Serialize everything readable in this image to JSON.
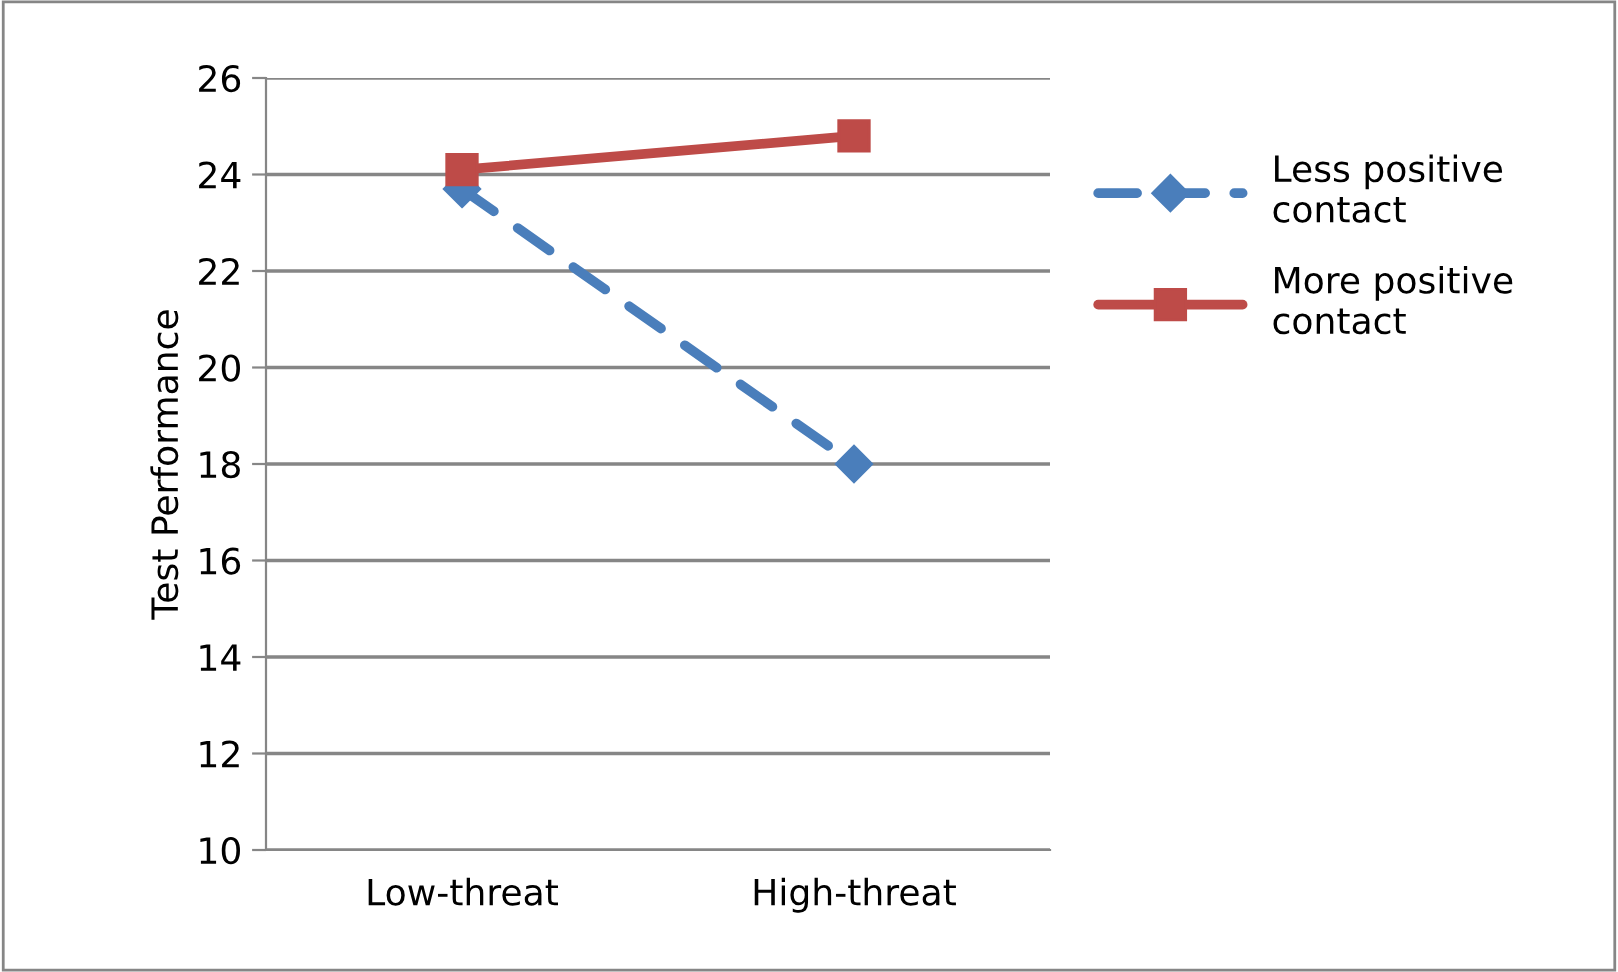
{
  "chart_data": {
    "type": "line",
    "ylabel": "Test Performance",
    "categories": [
      "Low-threat",
      "High-threat"
    ],
    "series": [
      {
        "name": "Less positive contact",
        "color": "#4a7ebb",
        "values": [
          23.7,
          18.0
        ],
        "marker": "diamond",
        "line_style": "dashed"
      },
      {
        "name": "More positive contact",
        "color": "#be4b48",
        "values": [
          24.1,
          24.8
        ],
        "marker": "square",
        "line_style": "solid"
      }
    ],
    "ylim": [
      10,
      26
    ],
    "yticks": [
      10,
      12,
      14,
      16,
      18,
      20,
      22,
      24,
      26
    ],
    "grid": "y",
    "legend": "right"
  }
}
